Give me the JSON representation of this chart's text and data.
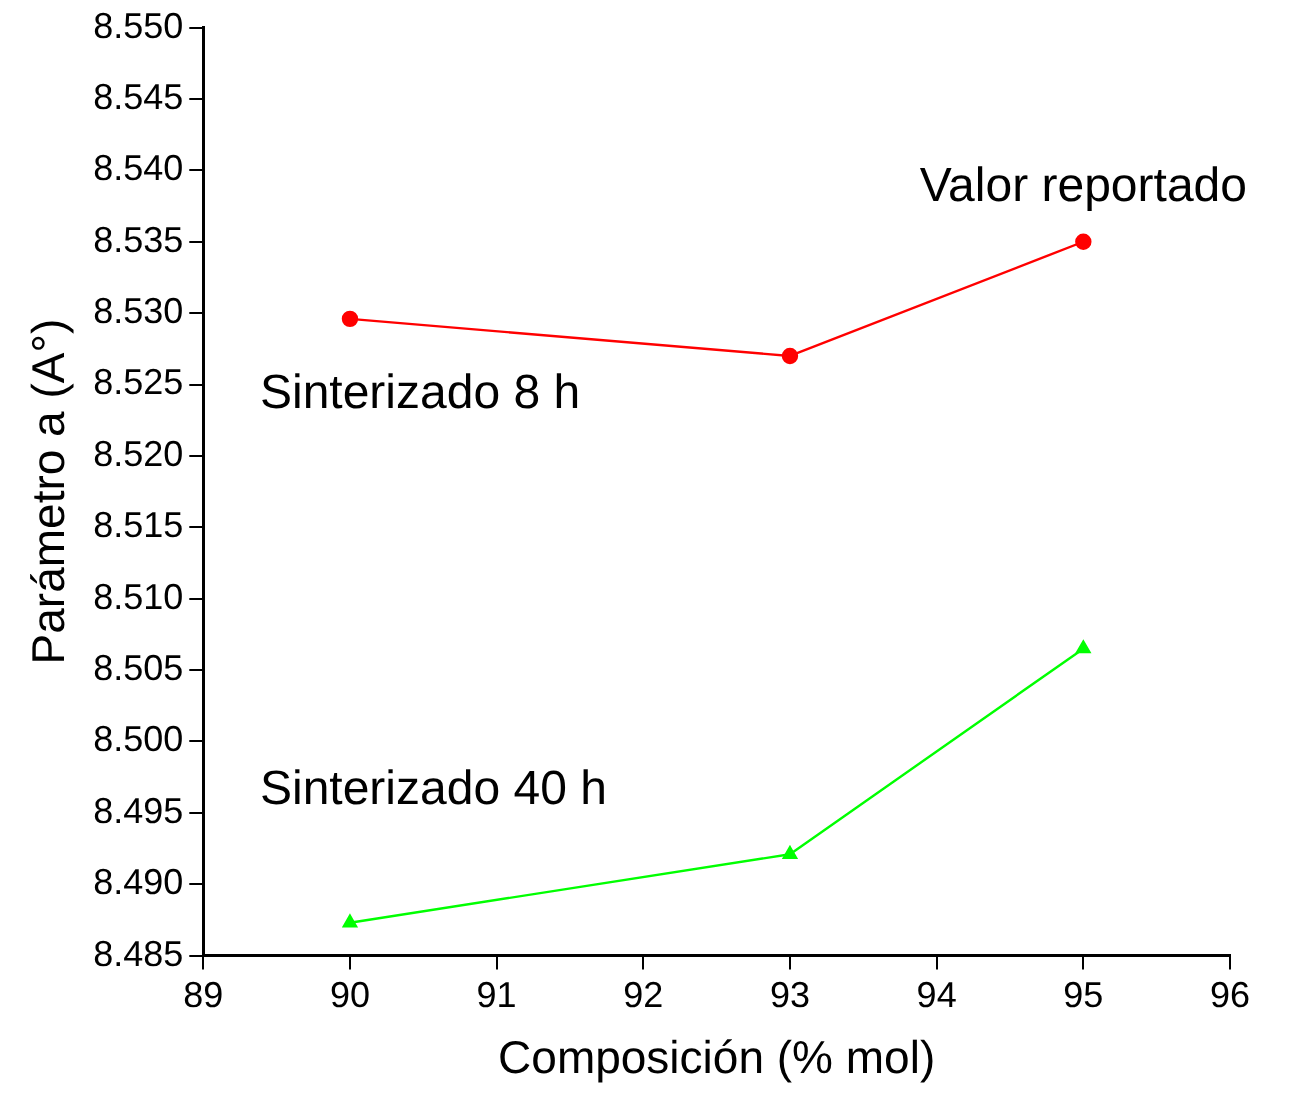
{
  "chart_data": {
    "type": "line",
    "xlabel": "Composición (% mol)",
    "ylabel": "Parámetro a (A°)",
    "xlim": [
      89,
      96
    ],
    "xticks": [
      89,
      90,
      91,
      92,
      93,
      94,
      95,
      96
    ],
    "ylim": [
      8.485,
      8.55
    ],
    "yticks": [
      {
        "value": 8.485,
        "label": "8.485"
      },
      {
        "value": 8.49,
        "label": "8.490"
      },
      {
        "value": 8.495,
        "label": "8.495"
      },
      {
        "value": 8.5,
        "label": "8.500"
      },
      {
        "value": 8.505,
        "label": "8.505"
      },
      {
        "value": 8.51,
        "label": "8.510"
      },
      {
        "value": 8.515,
        "label": "8.515"
      },
      {
        "value": 8.52,
        "label": "8.520"
      },
      {
        "value": 8.525,
        "label": "8.525"
      },
      {
        "value": 8.53,
        "label": "8.530"
      },
      {
        "value": 8.535,
        "label": "8.535"
      },
      {
        "value": 8.54,
        "label": "8.540"
      },
      {
        "value": 8.545,
        "label": "8.545"
      },
      {
        "value": 8.55,
        "label": "8.550"
      }
    ],
    "x": [
      90,
      93,
      95
    ],
    "series": [
      {
        "name": "Sinterizado 8 h",
        "color": "#ff0000",
        "marker": "circle",
        "values": [
          8.5296,
          8.527,
          8.535
        ]
      },
      {
        "name": "Sinterizado 40 h",
        "color": "#00ff00",
        "marker": "triangle",
        "values": [
          8.4873,
          8.4921,
          8.5065
        ]
      }
    ],
    "annotations": [
      {
        "text": "Valor reportado",
        "x": 95,
        "y": 8.535
      }
    ],
    "grid": false,
    "legend": false
  }
}
